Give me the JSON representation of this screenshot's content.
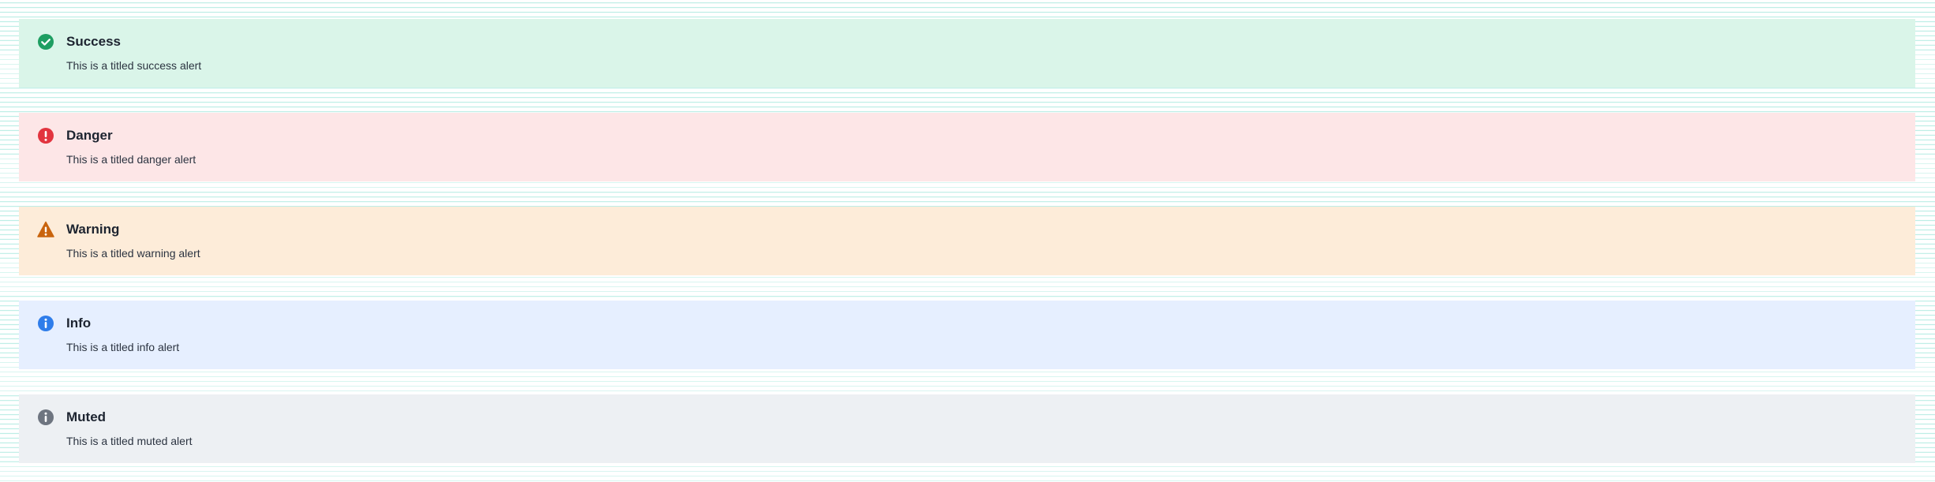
{
  "alerts": [
    {
      "variant": "success",
      "icon": "check-circle-icon",
      "color": "#1e9e62",
      "background": "#daf5e9",
      "title": "Success",
      "body": "This is a titled success alert"
    },
    {
      "variant": "danger",
      "icon": "exclamation-circle-icon",
      "color": "#e2343f",
      "background": "#fde6e7",
      "title": "Danger",
      "body": "This is a titled danger alert"
    },
    {
      "variant": "warning",
      "icon": "warning-triangle-icon",
      "color": "#c9640e",
      "background": "#fdecd9",
      "title": "Warning",
      "body": "This is a titled warning alert"
    },
    {
      "variant": "info",
      "icon": "info-circle-icon",
      "color": "#2f7dea",
      "background": "#e6efff",
      "title": "Info",
      "body": "This is a titled info alert"
    },
    {
      "variant": "muted",
      "icon": "info-circle-icon",
      "color": "#6e7580",
      "background": "#edf0f3",
      "title": "Muted",
      "body": "This is a titled muted alert"
    }
  ]
}
